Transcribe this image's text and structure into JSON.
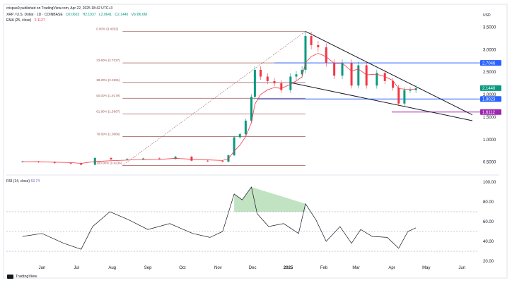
{
  "header": {
    "author": "crispus9 published on TradingView.com, Apr 22, 2025 18:42 UTC+3",
    "symbol": "XRP / U.S. Dollar · 1D · COINBASE",
    "ohlc": [
      "O2.0602",
      "H2.1937",
      "L2.0641",
      "C2.1440",
      "Vol 86.6M"
    ],
    "ema_label": "EMA (25, close)",
    "ema_value": "2.1127",
    "currency": "USD"
  },
  "colors": {
    "up": "#089981",
    "down": "#f23645",
    "ema": "#f23645",
    "fib": "#a05656",
    "blue_level": "#2962ff",
    "purple_level": "#9c27b0",
    "rsi_fill": "#4caf50"
  },
  "icons": [
    "tradingview-logo-icon"
  ],
  "chart_data": [
    {
      "type": "candlestick",
      "title": "XRP / U.S. Dollar · 1D · COINBASE",
      "ylabel": "USD",
      "ylim": [
        0.4,
        3.6
      ],
      "x_tick_labels": [
        "Jun",
        "Jul",
        "Aug",
        "Sep",
        "Oct",
        "Nov",
        "Dec",
        "2025",
        "Feb",
        "Mar",
        "Apr",
        "May",
        "Jun"
      ],
      "y_tick_labels": [
        "3.5000",
        "3.0000",
        "2.5000",
        "2.0000",
        "1.5000",
        "1.0000",
        "0.5000"
      ],
      "y_ticks": [
        3.5,
        3.0,
        2.5,
        2.0,
        1.5,
        1.0,
        0.5
      ],
      "series": [
        {
          "name": "XRP",
          "x": [
            "2024-05-15",
            "2024-05-29",
            "2024-06-12",
            "2024-06-26",
            "2024-07-05",
            "2024-07-17",
            "2024-07-31",
            "2024-08-14",
            "2024-08-28",
            "2024-09-11",
            "2024-09-25",
            "2024-10-09",
            "2024-10-23",
            "2024-11-05",
            "2024-11-10",
            "2024-11-15",
            "2024-11-20",
            "2024-11-25",
            "2024-11-30",
            "2024-12-03",
            "2024-12-08",
            "2024-12-14",
            "2024-12-20",
            "2024-12-26",
            "2025-01-03",
            "2025-01-08",
            "2025-01-13",
            "2025-01-16",
            "2025-01-21",
            "2025-01-27",
            "2025-02-03",
            "2025-02-10",
            "2025-02-17",
            "2025-02-25",
            "2025-03-03",
            "2025-03-10",
            "2025-03-19",
            "2025-03-26",
            "2025-04-02",
            "2025-04-07",
            "2025-04-12",
            "2025-04-17",
            "2025-04-22"
          ],
          "close": [
            0.51,
            0.5,
            0.48,
            0.47,
            0.44,
            0.59,
            0.56,
            0.57,
            0.58,
            0.57,
            0.62,
            0.53,
            0.52,
            0.51,
            0.65,
            1.05,
            1.12,
            1.42,
            1.95,
            2.55,
            2.4,
            2.3,
            2.25,
            2.1,
            2.4,
            2.45,
            2.55,
            3.3,
            3.1,
            3.05,
            2.7,
            2.42,
            2.7,
            2.2,
            2.65,
            2.2,
            2.48,
            2.3,
            2.15,
            1.8,
            2.1,
            2.1,
            2.14
          ]
        }
      ],
      "ema": {
        "name": "EMA (25, close)",
        "last": 2.1127
      },
      "fib_levels": [
        {
          "label": "0.00% (3.4052)",
          "price": 3.4052
        },
        {
          "label": "23.60% (2.7037)",
          "price": 2.7037
        },
        {
          "label": "38.20% (2.2691)",
          "price": 2.2691
        },
        {
          "label": "50.00% (1.9179)",
          "price": 1.9179
        },
        {
          "label": "61.80% (1.5667)",
          "price": 1.5667
        },
        {
          "label": "78.60% (1.0666)",
          "price": 1.0666
        },
        {
          "label": "100.00% (0.4236)",
          "price": 0.4236
        }
      ],
      "price_labels": [
        {
          "text": "2.7046",
          "price": 2.7046,
          "color": "#2962ff"
        },
        {
          "text": "2.1440",
          "price": 2.144,
          "color": "#089981"
        },
        {
          "text": "1.9023",
          "price": 1.9023,
          "color": "#2962ff"
        },
        {
          "text": "1.6112",
          "price": 1.6112,
          "color": "#9c27b0"
        }
      ],
      "wedge": {
        "upper": [
          [
            "2025-01-16",
            3.4052
          ],
          [
            "2025-06-10",
            1.55
          ]
        ],
        "lower": [
          [
            "2025-01-02",
            2.27
          ],
          [
            "2025-06-10",
            1.42
          ]
        ]
      }
    },
    {
      "type": "line",
      "title": "RSI (14, close)",
      "value_label": "53.74",
      "ylim": [
        20,
        100
      ],
      "y_tick_labels": [
        "100.00",
        "80.00",
        "60.00",
        "40.00",
        "20.00"
      ],
      "y_ticks": [
        100,
        80,
        60,
        40,
        20
      ],
      "levels": [
        70,
        50,
        30
      ],
      "series": [
        {
          "name": "RSI",
          "x": [
            "2024-05-15",
            "2024-06-01",
            "2024-06-20",
            "2024-07-05",
            "2024-07-15",
            "2024-07-30",
            "2024-08-15",
            "2024-09-01",
            "2024-09-20",
            "2024-10-10",
            "2024-10-25",
            "2024-11-05",
            "2024-11-15",
            "2024-11-22",
            "2024-11-30",
            "2024-12-05",
            "2024-12-15",
            "2024-12-28",
            "2025-01-10",
            "2025-01-16",
            "2025-01-25",
            "2025-02-03",
            "2025-02-15",
            "2025-02-25",
            "2025-03-05",
            "2025-03-15",
            "2025-03-28",
            "2025-04-07",
            "2025-04-15",
            "2025-04-22"
          ],
          "values": [
            45,
            48,
            38,
            32,
            55,
            70,
            62,
            52,
            58,
            48,
            44,
            50,
            88,
            82,
            95,
            68,
            55,
            58,
            48,
            78,
            62,
            40,
            55,
            38,
            52,
            45,
            44,
            33,
            50,
            53.74
          ]
        }
      ]
    }
  ]
}
